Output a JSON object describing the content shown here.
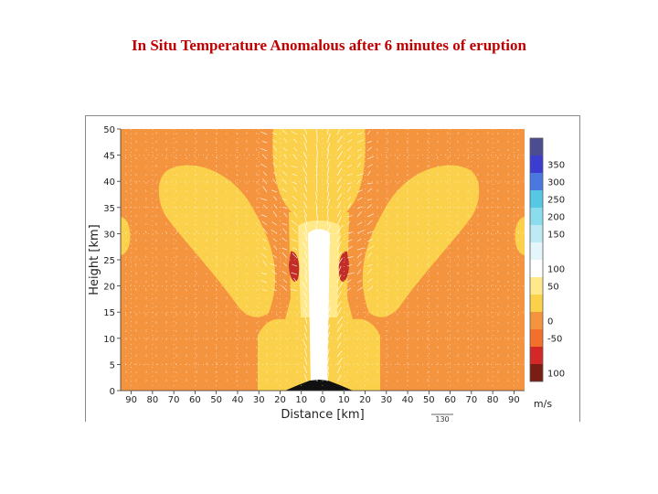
{
  "slide": {
    "title": "In Situ Temperature Anomalous after 6 minutes of eruption"
  },
  "chart_data": {
    "type": "heatmap",
    "title": "In Situ Temperature Anomalous after 6 minutes of eruption",
    "xlabel": "Distance [km]",
    "ylabel": "Height [km]",
    "x_ticks": [
      "90",
      "80",
      "70",
      "60",
      "50",
      "40",
      "30",
      "20",
      "10",
      "0",
      "10",
      "20",
      "30",
      "40",
      "50",
      "60",
      "70",
      "80",
      "90"
    ],
    "y_ticks": [
      "0",
      "5",
      "10",
      "15",
      "20",
      "25",
      "30",
      "35",
      "40",
      "45",
      "50"
    ],
    "xlim": [
      -95,
      95
    ],
    "ylim": [
      0,
      50
    ],
    "grid": true,
    "colorbar": {
      "levels": [
        {
          "label": "100",
          "color": "#7a1e14"
        },
        {
          "label": "",
          "color": "#d42828"
        },
        {
          "label": "-50",
          "color": "#f2702a"
        },
        {
          "label": "0",
          "color": "#f5943f"
        },
        {
          "label": "",
          "color": "#fbd04a"
        },
        {
          "label": "50",
          "color": "#ffe98a"
        },
        {
          "label": "100",
          "color": "#ffffff"
        },
        {
          "label": "",
          "color": "#e4f6fa"
        },
        {
          "label": "150",
          "color": "#bdebf4"
        },
        {
          "label": "200",
          "color": "#8bdcec"
        },
        {
          "label": "250",
          "color": "#56c8e4"
        },
        {
          "label": "300",
          "color": "#4a78e0"
        },
        {
          "label": "350",
          "color": "#3c3cd0"
        },
        {
          "label": "",
          "color": "#4c4c90"
        }
      ],
      "unit_label": "m/s"
    },
    "vector_scale_label": "130",
    "colors": {
      "background": "#f5943f",
      "warm_lobe": "#fbd04a",
      "hot_core": "#ffffff",
      "cold_spot": "#c22d28",
      "terrain": "#111111"
    }
  }
}
